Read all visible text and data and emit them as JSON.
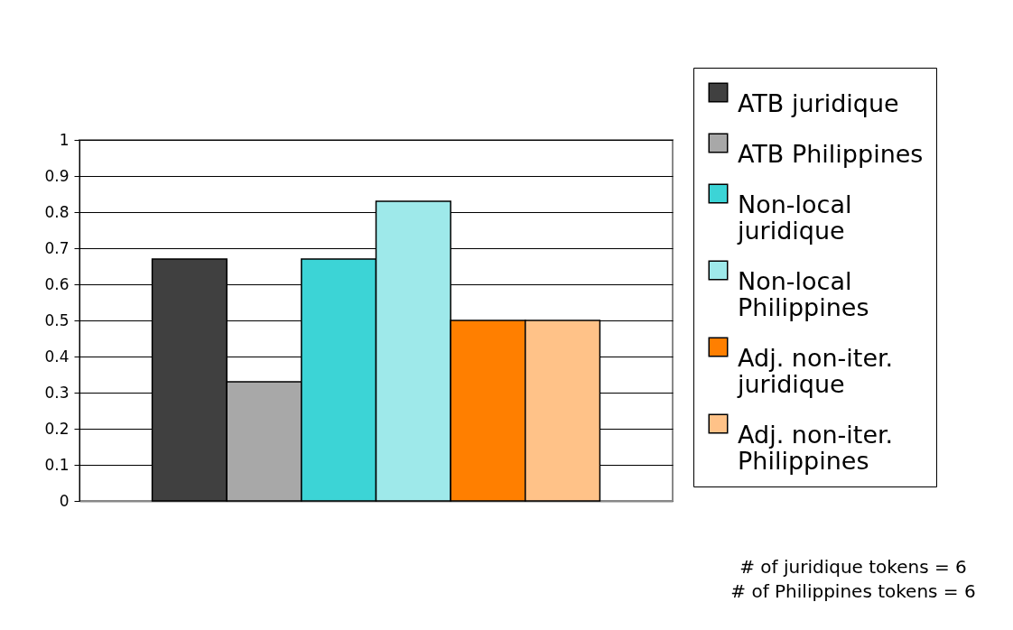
{
  "chart_data": {
    "type": "bar",
    "categories": [
      null
    ],
    "series": [
      {
        "name": "ATB juridique",
        "color": "#404040",
        "values": [
          0.67
        ]
      },
      {
        "name": "ATB Philippines",
        "color": "#a8a8a8",
        "values": [
          0.33
        ]
      },
      {
        "name": "Non-local juridique",
        "color": "#3cd4d6",
        "values": [
          0.67
        ]
      },
      {
        "name": "Non-local Philippines",
        "color": "#9ee9ea",
        "values": [
          0.83
        ]
      },
      {
        "name": "Adj. non-iter. juridique",
        "color": "#ff7f00",
        "values": [
          0.5
        ]
      },
      {
        "name": "Adj. non-iter. Philippines",
        "color": "#ffc288",
        "values": [
          0.5
        ]
      }
    ],
    "ylim": [
      0,
      1
    ],
    "yticks": [
      0,
      0.1,
      0.2,
      0.3,
      0.4,
      0.5,
      0.6,
      0.7,
      0.8,
      0.9,
      1
    ],
    "grid": "y",
    "legend": "right",
    "tick_labels": "y",
    "annotations": [
      "# of juridique tokens = 6",
      "# of Philippines tokens = 6"
    ]
  }
}
